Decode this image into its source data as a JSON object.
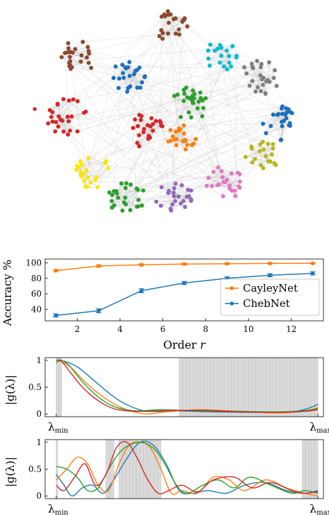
{
  "network": {
    "type": "scatter",
    "description_free": true,
    "clusters": [
      {
        "color": "#8c4a2f",
        "count": 22
      },
      {
        "color": "#8c4a2f",
        "count": 24
      },
      {
        "color": "#00bcd4",
        "count": 20
      },
      {
        "color": "#1f6fbf",
        "count": 24
      },
      {
        "color": "#7f7f7f",
        "count": 26
      },
      {
        "color": "#d62728",
        "count": 26
      },
      {
        "color": "#d62728",
        "count": 24
      },
      {
        "color": "#2ca02c",
        "count": 26
      },
      {
        "color": "#ff7f0e",
        "count": 22
      },
      {
        "color": "#1f6fbf",
        "count": 24
      },
      {
        "color": "#ffe600",
        "count": 22
      },
      {
        "color": "#b5b81a",
        "count": 20
      },
      {
        "color": "#2ca02c",
        "count": 26
      },
      {
        "color": "#9467bd",
        "count": 24
      },
      {
        "color": "#e377c2",
        "count": 24
      }
    ]
  },
  "chart_data": [
    {
      "type": "line",
      "xlabel": "Order r",
      "ylabel": "Accuracy %",
      "xlim": [
        0.5,
        13.5
      ],
      "ylim": [
        25,
        105
      ],
      "xticks": [
        2,
        4,
        6,
        8,
        10,
        12
      ],
      "yticks": [
        40,
        60,
        80,
        100
      ],
      "legend": "bottom-right",
      "series": [
        {
          "name": "CayleyNet",
          "color": "#ff7f0e",
          "x": [
            1,
            3,
            5,
            7,
            9,
            11,
            13
          ],
          "y": [
            90,
            96,
            97.5,
            98.5,
            99,
            99.3,
            99.5
          ],
          "err": [
            1.5,
            1.5,
            1.2,
            1,
            1,
            0.8,
            0.8
          ]
        },
        {
          "name": "ChebNet",
          "color": "#1f77b4",
          "x": [
            1,
            3,
            5,
            7,
            9,
            11,
            13
          ],
          "y": [
            32,
            38,
            64,
            74,
            80,
            84,
            86.5
          ],
          "err": [
            2,
            2.5,
            2.5,
            2,
            2,
            2,
            2
          ]
        }
      ]
    },
    {
      "type": "line",
      "ylabel": "|g(λ)|",
      "xtick_labels": [
        "λmin",
        "λmax"
      ],
      "yticks": [
        0,
        0.5,
        1
      ],
      "ylim": [
        -0.05,
        1.05
      ],
      "eigen_bands": [
        {
          "from": 0.0,
          "to": 0.02
        },
        {
          "from": 0.47,
          "to": 1.0
        }
      ],
      "series": [
        {
          "color": "#1f77b4",
          "x": [
            0,
            0.02,
            0.08,
            0.15,
            0.22,
            0.28,
            0.35,
            0.45,
            0.6,
            0.8,
            0.9,
            0.96,
            1.0
          ],
          "y": [
            1,
            1.0,
            0.88,
            0.6,
            0.32,
            0.15,
            0.05,
            0.06,
            0.04,
            0.03,
            0.04,
            0.1,
            0.18
          ]
        },
        {
          "color": "#ff7f0e",
          "x": [
            0,
            0.02,
            0.06,
            0.12,
            0.2,
            0.27,
            0.34,
            0.42,
            0.55,
            0.7,
            0.85,
            0.95,
            1.0
          ],
          "y": [
            1,
            0.98,
            0.85,
            0.55,
            0.25,
            0.08,
            0.0,
            0.04,
            0.08,
            0.05,
            0.02,
            0.06,
            0.12
          ]
        },
        {
          "color": "#2ca02c",
          "x": [
            0,
            0.02,
            0.05,
            0.1,
            0.16,
            0.22,
            0.3,
            0.4,
            0.55,
            0.7,
            0.85,
            0.95,
            1.0
          ],
          "y": [
            0.95,
            1.0,
            0.9,
            0.6,
            0.32,
            0.14,
            0.06,
            0.08,
            0.06,
            0.05,
            0.04,
            0.06,
            0.1
          ]
        },
        {
          "color": "#d62728",
          "x": [
            0,
            0.02,
            0.05,
            0.1,
            0.16,
            0.22,
            0.3,
            0.4,
            0.55,
            0.7,
            0.85,
            0.95,
            1.0
          ],
          "y": [
            1,
            0.98,
            0.8,
            0.5,
            0.25,
            0.1,
            0.05,
            0.06,
            0.07,
            0.04,
            0.03,
            0.05,
            0.08
          ]
        }
      ]
    },
    {
      "type": "line",
      "ylabel": "|g(λ)|",
      "xtick_labels": [
        "λmin",
        "λmax"
      ],
      "yticks": [
        0,
        0.5,
        1
      ],
      "ylim": [
        -0.05,
        1.05
      ],
      "eigen_bands": [
        {
          "from": 0.0,
          "to": 0.005
        },
        {
          "from": 0.19,
          "to": 0.22
        },
        {
          "from": 0.24,
          "to": 0.4
        },
        {
          "from": 0.94,
          "to": 1.0
        }
      ],
      "series": [
        {
          "color": "#1f77b4",
          "x": [
            0,
            0.03,
            0.06,
            0.1,
            0.14,
            0.18,
            0.22,
            0.27,
            0.32,
            0.37,
            0.42,
            0.47,
            0.52,
            0.58,
            0.65,
            0.72,
            0.8,
            0.88,
            0.95,
            1.0
          ],
          "y": [
            0.4,
            0.2,
            0.0,
            0.15,
            0.2,
            0.05,
            0.3,
            0.7,
            1.0,
            0.95,
            0.6,
            0.1,
            0.05,
            0.1,
            0.05,
            0.2,
            0.25,
            0.1,
            0.05,
            0.1
          ]
        },
        {
          "color": "#ff7f0e",
          "x": [
            0,
            0.04,
            0.08,
            0.12,
            0.16,
            0.2,
            0.24,
            0.28,
            0.32,
            0.36,
            0.4,
            0.44,
            0.48,
            0.54,
            0.6,
            0.66,
            0.72,
            0.8,
            0.88,
            0.95,
            1.0
          ],
          "y": [
            0.3,
            0.5,
            0.72,
            0.6,
            0.2,
            0.1,
            0.6,
            0.95,
            1.0,
            0.9,
            0.5,
            0.05,
            0.1,
            0.05,
            0.35,
            0.3,
            0.1,
            0.3,
            0.15,
            0.05,
            0.0
          ]
        },
        {
          "color": "#2ca02c",
          "x": [
            0,
            0.04,
            0.08,
            0.12,
            0.16,
            0.2,
            0.24,
            0.28,
            0.33,
            0.38,
            0.42,
            0.46,
            0.5,
            0.56,
            0.62,
            0.68,
            0.74,
            0.82,
            0.9,
            0.95,
            1.0
          ],
          "y": [
            0.55,
            0.5,
            0.35,
            0.1,
            0.15,
            0.5,
            0.8,
            0.95,
            1.0,
            0.85,
            0.55,
            0.2,
            0.05,
            0.2,
            0.3,
            0.15,
            0.35,
            0.2,
            0.05,
            0.1,
            0.05
          ]
        },
        {
          "color": "#d62728",
          "x": [
            0,
            0.03,
            0.07,
            0.11,
            0.15,
            0.19,
            0.23,
            0.27,
            0.31,
            0.35,
            0.39,
            0.43,
            0.48,
            0.54,
            0.6,
            0.68,
            0.75,
            0.82,
            0.9,
            0.95,
            1.0
          ],
          "y": [
            0.2,
            0.1,
            0.35,
            0.6,
            0.2,
            0.4,
            0.9,
            1.0,
            0.7,
            0.3,
            0.05,
            0.1,
            0.2,
            0.08,
            0.3,
            0.35,
            0.15,
            0.25,
            0.1,
            0.05,
            0.08
          ]
        }
      ]
    }
  ]
}
